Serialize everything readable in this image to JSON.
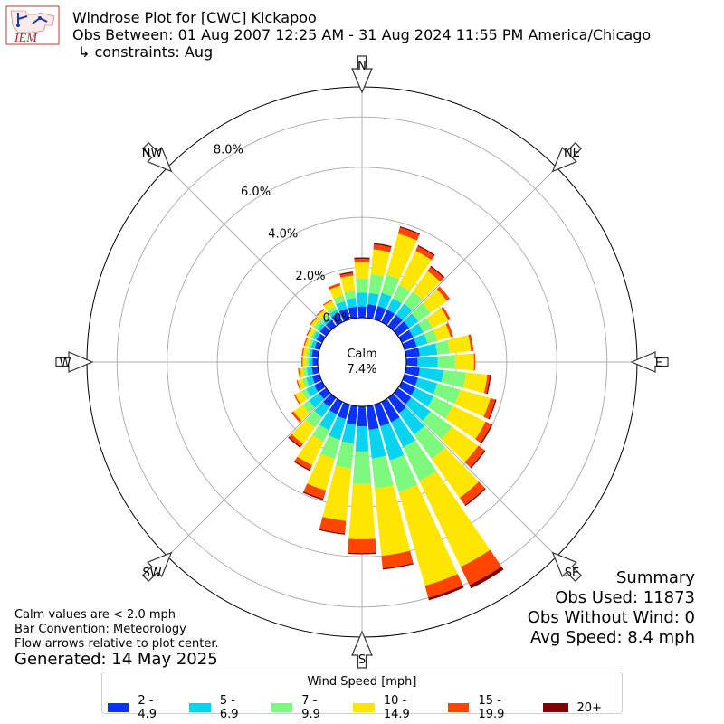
{
  "header": {
    "logo_text": "IEM",
    "title": "Windrose Plot for [CWC] Kickapoo",
    "obs_between": "Obs Between: 01 Aug 2007 12:25 AM - 31 Aug 2024 11:55 PM America/Chicago",
    "constraints": "↳ constraints: Aug"
  },
  "directions": [
    {
      "label": "N",
      "deg": 0
    },
    {
      "label": "NE",
      "deg": 45
    },
    {
      "label": "E",
      "deg": 90
    },
    {
      "label": "SE",
      "deg": 135
    },
    {
      "label": "S",
      "deg": 180
    },
    {
      "label": "SW",
      "deg": 225
    },
    {
      "label": "W",
      "deg": 270
    },
    {
      "label": "NW",
      "deg": 315
    }
  ],
  "calm": {
    "label": "Calm",
    "value": "7.4%"
  },
  "summary": {
    "heading": "Summary",
    "obs_used": "Obs Used: 11873",
    "obs_without_wind": "Obs Without Wind: 0",
    "avg_speed": "Avg Speed: 8.4 mph"
  },
  "notes": {
    "calm_note": "Calm values are < 2.0 mph",
    "bar_convention": "Bar Convention: Meteorology",
    "flow_arrows": "Flow arrows relative to plot center.",
    "generated": "Generated: 14 May 2025"
  },
  "legend": {
    "title": "Wind Speed [mph]",
    "items": [
      {
        "label": "2 - 4.9",
        "color": "#0a32ff"
      },
      {
        "label": "5 - 6.9",
        "color": "#05d4f0"
      },
      {
        "label": "7 - 9.9",
        "color": "#7dfa7d"
      },
      {
        "label": "10 - 14.9",
        "color": "#ffe600"
      },
      {
        "label": "15 - 19.9",
        "color": "#ff4500"
      },
      {
        "label": "20+",
        "color": "#800000"
      }
    ]
  },
  "chart_data": {
    "type": "windrose",
    "radial_ticks": [
      "0.0%",
      "2.0%",
      "4.0%",
      "6.0%",
      "8.0%"
    ],
    "radial_max": 9.2,
    "bins": [
      "2 - 4.9",
      "5 - 6.9",
      "7 - 9.9",
      "10 - 14.9",
      "15 - 19.9",
      "20+"
    ],
    "directions_deg": [
      0,
      10,
      20,
      30,
      40,
      50,
      60,
      70,
      80,
      90,
      100,
      110,
      120,
      130,
      140,
      150,
      160,
      170,
      180,
      190,
      200,
      210,
      220,
      230,
      240,
      250,
      260,
      270,
      280,
      290,
      300,
      310,
      320,
      330,
      340,
      350
    ],
    "cumulative_percent": [
      [
        0.45,
        1.0,
        1.55,
        2.2,
        2.35,
        2.4
      ],
      [
        0.55,
        1.0,
        1.75,
        2.75,
        2.95,
        3.0
      ],
      [
        0.55,
        1.1,
        1.85,
        3.55,
        3.8,
        3.85
      ],
      [
        0.55,
        1.05,
        1.65,
        3.15,
        3.35,
        3.4
      ],
      [
        0.55,
        1.1,
        1.7,
        2.7,
        2.9,
        2.95
      ],
      [
        0.55,
        1.0,
        1.6,
        2.4,
        2.55,
        2.55
      ],
      [
        0.5,
        0.95,
        1.35,
        2.05,
        2.15,
        2.15
      ],
      [
        0.5,
        0.95,
        1.35,
        1.9,
        2.0,
        2.0
      ],
      [
        0.55,
        1.25,
        1.75,
        2.6,
        2.7,
        2.7
      ],
      [
        0.45,
        1.25,
        1.95,
        2.7,
        2.75,
        2.75
      ],
      [
        0.55,
        1.5,
        2.4,
        3.25,
        3.35,
        3.4
      ],
      [
        0.55,
        1.35,
        2.3,
        3.55,
        3.75,
        3.8
      ],
      [
        0.6,
        1.4,
        2.25,
        3.7,
        3.95,
        4.0
      ],
      [
        0.65,
        1.6,
        2.65,
        3.95,
        4.25,
        4.3
      ],
      [
        0.75,
        1.8,
        3.0,
        4.9,
        5.25,
        5.3
      ],
      [
        0.9,
        2.0,
        3.5,
        7.3,
        8.1,
        8.25
      ],
      [
        0.9,
        2.3,
        3.6,
        7.5,
        8.0,
        8.1
      ],
      [
        0.95,
        2.1,
        3.3,
        6.0,
        6.5,
        6.55
      ],
      [
        0.8,
        1.8,
        3.1,
        5.3,
        5.85,
        5.9
      ],
      [
        0.75,
        1.5,
        2.5,
        4.6,
        5.1,
        5.15
      ],
      [
        0.6,
        1.45,
        2.25,
        3.55,
        3.9,
        3.95
      ],
      [
        0.55,
        1.25,
        1.75,
        2.8,
        3.0,
        3.05
      ],
      [
        0.45,
        0.95,
        1.45,
        2.25,
        2.4,
        2.45
      ],
      [
        0.35,
        0.85,
        1.15,
        1.6,
        1.7,
        1.7
      ],
      [
        0.35,
        0.7,
        0.9,
        1.2,
        1.25,
        1.25
      ],
      [
        0.3,
        0.55,
        0.7,
        0.9,
        0.95,
        0.95
      ],
      [
        0.25,
        0.45,
        0.6,
        0.75,
        0.8,
        0.8
      ],
      [
        0.2,
        0.35,
        0.45,
        0.6,
        0.65,
        0.65
      ],
      [
        0.25,
        0.35,
        0.45,
        0.6,
        0.65,
        0.65
      ],
      [
        0.2,
        0.35,
        0.45,
        0.6,
        0.65,
        0.65
      ],
      [
        0.25,
        0.4,
        0.5,
        0.65,
        0.7,
        0.7
      ],
      [
        0.3,
        0.45,
        0.6,
        0.75,
        0.8,
        0.8
      ],
      [
        0.3,
        0.45,
        0.6,
        0.8,
        0.85,
        0.85
      ],
      [
        0.4,
        0.55,
        0.7,
        0.95,
        1.0,
        1.0
      ],
      [
        0.45,
        0.75,
        1.0,
        1.4,
        1.5,
        1.5
      ],
      [
        0.45,
        0.8,
        1.1,
        1.7,
        1.8,
        1.85
      ]
    ]
  }
}
